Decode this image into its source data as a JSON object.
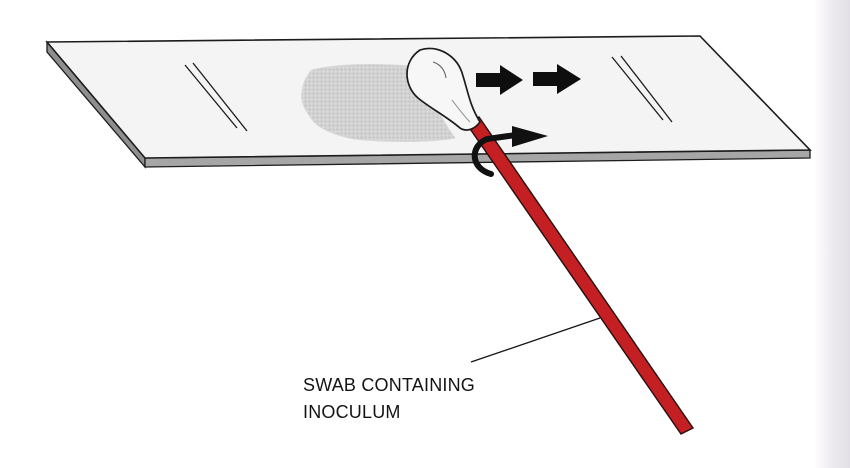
{
  "caption": {
    "line1": "SWAB CONTAINING",
    "line2": "INOCULUM"
  },
  "colors": {
    "swab_stick": "#c41f22",
    "swab_stick_outline": "#2a0d0d",
    "slide_face": "#f4f4f4",
    "slide_edge": "#a6a6a6",
    "inoculum_smear": "#cfcfcf",
    "ink": "#141414"
  }
}
